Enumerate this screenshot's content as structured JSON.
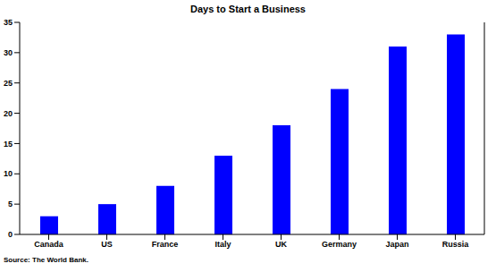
{
  "chart_data": {
    "type": "bar",
    "title": "Days to Start a Business",
    "source": "Source: The World Bank.",
    "categories": [
      "Canada",
      "US",
      "France",
      "Italy",
      "UK",
      "Germany",
      "Japan",
      "Russia"
    ],
    "values": [
      3,
      5,
      8,
      13,
      18,
      24,
      31,
      33
    ],
    "color": "#0000ff",
    "ylim": [
      0,
      35
    ],
    "yticks": [
      0,
      5,
      10,
      15,
      20,
      25,
      30,
      35
    ],
    "grid": false
  }
}
